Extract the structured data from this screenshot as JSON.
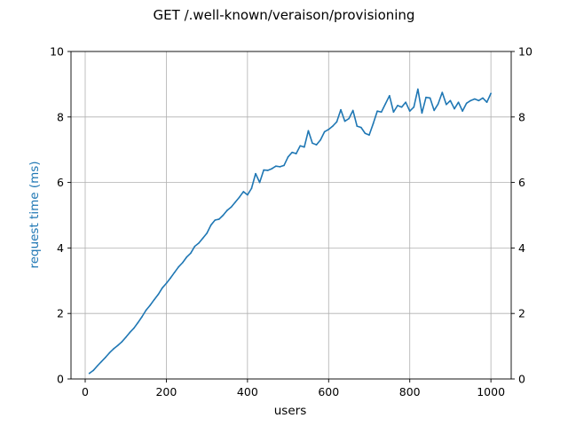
{
  "chart_data": {
    "type": "line",
    "title": "GET /.well-known/veraison/provisioning",
    "xlabel": "users",
    "ylabel": "request time (ms)",
    "xlim": [
      -35,
      1050
    ],
    "ylim": [
      0,
      10
    ],
    "x_ticks": [
      0,
      200,
      400,
      600,
      800,
      1000
    ],
    "y_ticks": [
      0,
      2,
      4,
      6,
      8,
      10
    ],
    "right_y_ticks": [
      0,
      2,
      4,
      6,
      8,
      10
    ],
    "grid": true,
    "legend": "none",
    "series_color": "#1f77b4",
    "ylabel_color": "#1f77b4",
    "series": [
      {
        "x": [
          10,
          20,
          30,
          40,
          50,
          60,
          70,
          80,
          90,
          100,
          110,
          120,
          130,
          140,
          150,
          160,
          170,
          180,
          190,
          200,
          210,
          220,
          230,
          240,
          250,
          260,
          270,
          280,
          290,
          300,
          310,
          320,
          330,
          340,
          350,
          360,
          370,
          380,
          390,
          400,
          410,
          420,
          430,
          440,
          450,
          460,
          470,
          480,
          490,
          500,
          510,
          520,
          530,
          540,
          550,
          560,
          570,
          580,
          590,
          600,
          610,
          620,
          630,
          640,
          650,
          660,
          670,
          680,
          690,
          700,
          710,
          720,
          730,
          740,
          750,
          760,
          770,
          780,
          790,
          800,
          810,
          820,
          830,
          840,
          850,
          860,
          870,
          880,
          890,
          900,
          910,
          920,
          930,
          940,
          950,
          960,
          970,
          980,
          990,
          1000
        ],
        "y": [
          0.17,
          0.26,
          0.4,
          0.53,
          0.66,
          0.8,
          0.92,
          1.02,
          1.13,
          1.27,
          1.42,
          1.55,
          1.72,
          1.9,
          2.1,
          2.25,
          2.42,
          2.58,
          2.78,
          2.92,
          3.08,
          3.25,
          3.42,
          3.55,
          3.72,
          3.84,
          4.05,
          4.15,
          4.3,
          4.45,
          4.7,
          4.85,
          4.88,
          5.0,
          5.15,
          5.25,
          5.4,
          5.55,
          5.72,
          5.62,
          5.82,
          6.27,
          6.0,
          6.38,
          6.37,
          6.42,
          6.5,
          6.48,
          6.52,
          6.78,
          6.92,
          6.88,
          7.12,
          7.08,
          7.58,
          7.2,
          7.15,
          7.3,
          7.55,
          7.62,
          7.72,
          7.85,
          8.22,
          7.87,
          7.95,
          8.2,
          7.72,
          7.68,
          7.5,
          7.45,
          7.8,
          8.18,
          8.15,
          8.4,
          8.65,
          8.15,
          8.35,
          8.3,
          8.45,
          8.18,
          8.3,
          8.85,
          8.12,
          8.6,
          8.58,
          8.2,
          8.4,
          8.75,
          8.38,
          8.5,
          8.25,
          8.45,
          8.18,
          8.42,
          8.5,
          8.55,
          8.5,
          8.58,
          8.45,
          8.72
        ]
      }
    ]
  }
}
